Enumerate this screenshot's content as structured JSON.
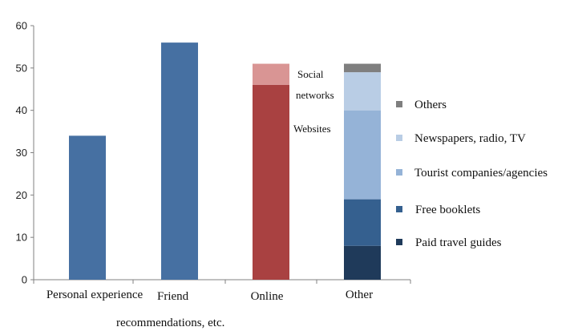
{
  "chart_data": {
    "type": "bar",
    "ylim": [
      0,
      60
    ],
    "yticks": [
      0,
      10,
      20,
      30,
      40,
      50,
      60
    ],
    "grid": false,
    "legend_position": "right",
    "categories": [
      "Personal experience",
      "Friend",
      "Online",
      "Other"
    ],
    "category_labels": [
      [
        "Personal experience"
      ],
      [
        "Friend",
        "recommendations, etc."
      ],
      [
        "Online"
      ],
      [
        "Other"
      ]
    ],
    "bars": [
      {
        "category": "Personal experience",
        "segments": [
          {
            "name": "",
            "value": 34,
            "color": "#4670a2"
          }
        ]
      },
      {
        "category": "Friend",
        "segments": [
          {
            "name": "",
            "value": 56,
            "color": "#4670a2"
          }
        ]
      },
      {
        "category": "Online",
        "segments": [
          {
            "name": "Websites",
            "value": 46,
            "color": "#a94141"
          },
          {
            "name": "Social networks",
            "value": 5,
            "color": "#d99594"
          }
        ]
      },
      {
        "category": "Other",
        "segments": [
          {
            "name": "Paid travel guides",
            "value": 8,
            "color": "#1f3a5a"
          },
          {
            "name": "Free booklets",
            "value": 11,
            "color": "#35608f"
          },
          {
            "name": "Tourist companies/agencies",
            "value": 21,
            "color": "#95b3d7"
          },
          {
            "name": "Newspapers, radio, TV",
            "value": 9,
            "color": "#b9cde5"
          },
          {
            "name": "Others",
            "value": 2,
            "color": "#7f7f7f"
          }
        ]
      }
    ],
    "annotations": [
      {
        "bar": "Online",
        "lines": [
          "Social",
          "networks"
        ]
      },
      {
        "bar": "Online",
        "lines": [
          "Websites"
        ]
      }
    ],
    "legend": [
      {
        "name": "Others",
        "color": "#7f7f7f"
      },
      {
        "name": "Newspapers, radio, TV",
        "color": "#b9cde5"
      },
      {
        "name": "Tourist companies/agencies",
        "color": "#95b3d7"
      },
      {
        "name": "Free booklets",
        "color": "#35608f"
      },
      {
        "name": "Paid travel guides",
        "color": "#1f3a5a"
      }
    ]
  }
}
